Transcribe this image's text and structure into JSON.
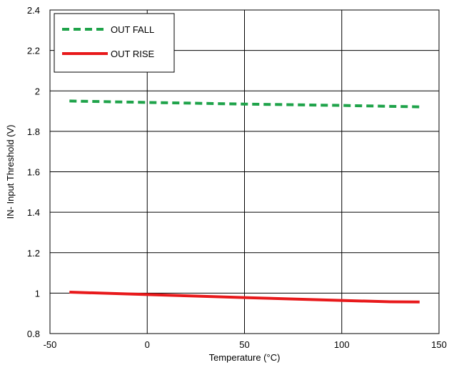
{
  "chart_data": {
    "type": "line",
    "xlabel": "Temperature (°C)",
    "ylabel": "IN- Input Threshold (V)",
    "xlim": [
      -50,
      150
    ],
    "ylim": [
      0.8,
      2.4
    ],
    "x_ticks": [
      "-50",
      "0",
      "50",
      "100",
      "150"
    ],
    "y_ticks": [
      "0.8",
      "1",
      "1.2",
      "1.4",
      "1.6",
      "1.8",
      "2",
      "2.2",
      "2.4"
    ],
    "grid": true,
    "legend_position": "top-left",
    "series": [
      {
        "name": "OUT FALL",
        "color": "#1fa34a",
        "style": "dashed",
        "x": [
          -40,
          0,
          50,
          100,
          140
        ],
        "y": [
          1.95,
          1.943,
          1.935,
          1.928,
          1.921
        ]
      },
      {
        "name": "OUT RISE",
        "color": "#e8191b",
        "style": "solid",
        "x": [
          -40,
          0,
          50,
          100,
          125,
          140
        ],
        "y": [
          1.005,
          0.993,
          0.978,
          0.964,
          0.957,
          0.956
        ]
      }
    ]
  }
}
